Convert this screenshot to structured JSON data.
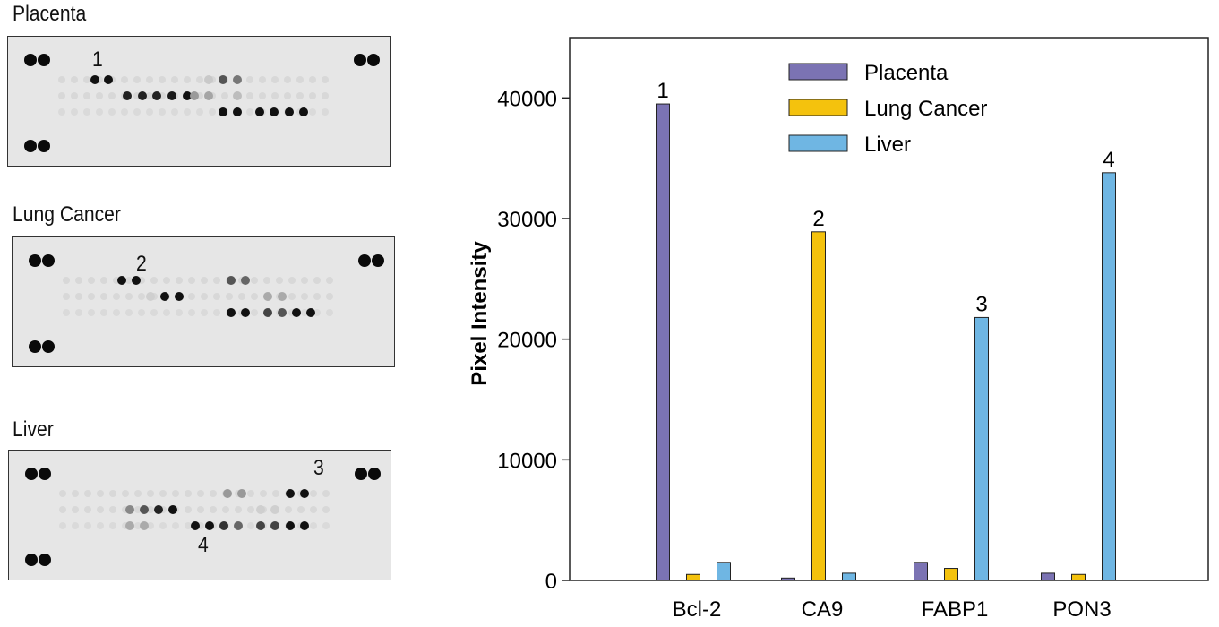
{
  "blots": [
    {
      "title": "Placenta",
      "labels": [
        {
          "text": "1",
          "kind": "1"
        }
      ]
    },
    {
      "title": "Lung Cancer",
      "labels": [
        {
          "text": "2",
          "kind": "2"
        }
      ]
    },
    {
      "title": "Liver",
      "labels": [
        {
          "text": "3",
          "kind": "3"
        },
        {
          "text": "4",
          "kind": "4"
        }
      ]
    }
  ],
  "chart_data": {
    "type": "bar",
    "title": "",
    "xlabel": "",
    "ylabel": "Pixel Intensity",
    "ylim": [
      0,
      45000
    ],
    "yticks": [
      0,
      10000,
      20000,
      30000,
      40000
    ],
    "ytick_labels": [
      "0",
      "10000",
      "20000",
      "30000",
      "40000"
    ],
    "grid": false,
    "legend_position": "top-center",
    "categories": [
      "Bcl-2",
      "CA9",
      "FABP1",
      "PON3"
    ],
    "series": [
      {
        "name": "Placenta",
        "color": "#7b73b3",
        "values": [
          39500,
          200,
          1500,
          600
        ]
      },
      {
        "name": "Lung Cancer",
        "color": "#f4c20d",
        "values": [
          500,
          28900,
          1000,
          500
        ]
      },
      {
        "name": "Liver",
        "color": "#6fb6e3",
        "values": [
          1500,
          600,
          21800,
          33800
        ]
      }
    ],
    "annotations": [
      {
        "text": "1",
        "category": "Bcl-2",
        "series": "Placenta"
      },
      {
        "text": "2",
        "category": "CA9",
        "series": "Lung Cancer"
      },
      {
        "text": "3",
        "category": "FABP1",
        "series": "Liver"
      },
      {
        "text": "4",
        "category": "PON3",
        "series": "Liver"
      }
    ]
  }
}
